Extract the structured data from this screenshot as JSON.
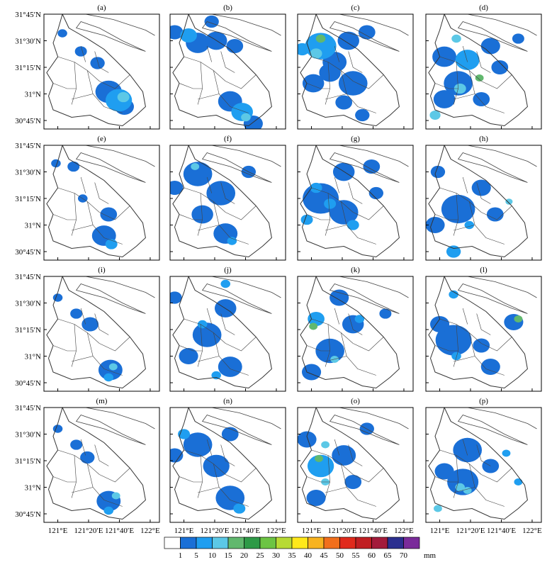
{
  "panels": [
    {
      "label": "(a)",
      "blobs": [
        {
          "x": 121.71,
          "y": 30.97,
          "mm": 45,
          "s": 0.05
        },
        {
          "x": 121.66,
          "y": 30.94,
          "mm": 25,
          "s": 0.11
        },
        {
          "x": 121.55,
          "y": 31.02,
          "mm": 15,
          "s": 0.11
        },
        {
          "x": 121.72,
          "y": 30.88,
          "mm": 15,
          "s": 0.08
        },
        {
          "x": 121.43,
          "y": 31.29,
          "mm": 12,
          "s": 0.06
        },
        {
          "x": 121.25,
          "y": 31.4,
          "mm": 8,
          "s": 0.05
        },
        {
          "x": 121.05,
          "y": 31.57,
          "mm": 6,
          "s": 0.04
        }
      ]
    },
    {
      "label": "(b)",
      "blobs": [
        {
          "x": 121.67,
          "y": 30.78,
          "mm": 45,
          "s": 0.04
        },
        {
          "x": 121.63,
          "y": 30.83,
          "mm": 25,
          "s": 0.09
        },
        {
          "x": 121.5,
          "y": 30.93,
          "mm": 15,
          "s": 0.1
        },
        {
          "x": 121.75,
          "y": 30.72,
          "mm": 12,
          "s": 0.08
        },
        {
          "x": 121.05,
          "y": 31.55,
          "mm": 20,
          "s": 0.07
        },
        {
          "x": 121.15,
          "y": 31.48,
          "mm": 10,
          "s": 0.1
        },
        {
          "x": 121.35,
          "y": 31.5,
          "mm": 10,
          "s": 0.09
        },
        {
          "x": 121.55,
          "y": 31.45,
          "mm": 8,
          "s": 0.07
        },
        {
          "x": 120.9,
          "y": 31.58,
          "mm": 8,
          "s": 0.07
        },
        {
          "x": 121.3,
          "y": 31.68,
          "mm": 6,
          "s": 0.06
        }
      ]
    },
    {
      "label": "(c)",
      "blobs": [
        {
          "x": 121.1,
          "y": 31.52,
          "mm": 65,
          "s": 0.04
        },
        {
          "x": 121.05,
          "y": 31.38,
          "mm": 55,
          "s": 0.05
        },
        {
          "x": 121.1,
          "y": 31.45,
          "mm": 25,
          "s": 0.13
        },
        {
          "x": 120.9,
          "y": 31.42,
          "mm": 25,
          "s": 0.06
        },
        {
          "x": 121.25,
          "y": 31.3,
          "mm": 15,
          "s": 0.1
        },
        {
          "x": 121.2,
          "y": 31.2,
          "mm": 15,
          "s": 0.09
        },
        {
          "x": 121.45,
          "y": 31.1,
          "mm": 10,
          "s": 0.12
        },
        {
          "x": 121.02,
          "y": 31.1,
          "mm": 10,
          "s": 0.09
        },
        {
          "x": 121.4,
          "y": 31.5,
          "mm": 8,
          "s": 0.09
        },
        {
          "x": 121.6,
          "y": 31.58,
          "mm": 6,
          "s": 0.07
        },
        {
          "x": 121.55,
          "y": 30.8,
          "mm": 6,
          "s": 0.06
        },
        {
          "x": 121.35,
          "y": 30.92,
          "mm": 8,
          "s": 0.07
        }
      ]
    },
    {
      "label": "(d)",
      "blobs": [
        {
          "x": 121.43,
          "y": 31.15,
          "mm": 70,
          "s": 0.035
        },
        {
          "x": 121.18,
          "y": 31.52,
          "mm": 55,
          "s": 0.04
        },
        {
          "x": 121.22,
          "y": 31.05,
          "mm": 45,
          "s": 0.05
        },
        {
          "x": 120.95,
          "y": 30.8,
          "mm": 45,
          "s": 0.045
        },
        {
          "x": 121.3,
          "y": 31.32,
          "mm": 20,
          "s": 0.1
        },
        {
          "x": 121.05,
          "y": 31.35,
          "mm": 12,
          "s": 0.1
        },
        {
          "x": 121.2,
          "y": 31.1,
          "mm": 15,
          "s": 0.12
        },
        {
          "x": 121.05,
          "y": 30.95,
          "mm": 12,
          "s": 0.09
        },
        {
          "x": 121.55,
          "y": 31.45,
          "mm": 10,
          "s": 0.08
        },
        {
          "x": 121.85,
          "y": 31.52,
          "mm": 15,
          "s": 0.05
        },
        {
          "x": 121.45,
          "y": 30.95,
          "mm": 8,
          "s": 0.07
        },
        {
          "x": 121.65,
          "y": 31.25,
          "mm": 6,
          "s": 0.07
        }
      ]
    },
    {
      "label": "(e)",
      "blobs": [
        {
          "x": 121.58,
          "y": 30.82,
          "mm": 25,
          "s": 0.05
        },
        {
          "x": 121.5,
          "y": 30.9,
          "mm": 12,
          "s": 0.1
        },
        {
          "x": 121.55,
          "y": 31.1,
          "mm": 10,
          "s": 0.07
        },
        {
          "x": 121.27,
          "y": 31.25,
          "mm": 8,
          "s": 0.04
        },
        {
          "x": 121.17,
          "y": 31.55,
          "mm": 8,
          "s": 0.05
        },
        {
          "x": 120.98,
          "y": 31.58,
          "mm": 6,
          "s": 0.04
        }
      ]
    },
    {
      "label": "(f)",
      "blobs": [
        {
          "x": 121.12,
          "y": 31.55,
          "mm": 40,
          "s": 0.035
        },
        {
          "x": 121.15,
          "y": 31.48,
          "mm": 12,
          "s": 0.12
        },
        {
          "x": 121.4,
          "y": 31.3,
          "mm": 10,
          "s": 0.12
        },
        {
          "x": 121.2,
          "y": 31.1,
          "mm": 10,
          "s": 0.09
        },
        {
          "x": 121.52,
          "y": 30.85,
          "mm": 35,
          "s": 0.04
        },
        {
          "x": 121.45,
          "y": 30.92,
          "mm": 12,
          "s": 0.1
        },
        {
          "x": 120.9,
          "y": 31.35,
          "mm": 8,
          "s": 0.07
        },
        {
          "x": 121.7,
          "y": 31.5,
          "mm": 8,
          "s": 0.06
        }
      ]
    },
    {
      "label": "(g)",
      "blobs": [
        {
          "x": 121.05,
          "y": 31.35,
          "mm": 25,
          "s": 0.05
        },
        {
          "x": 121.2,
          "y": 31.2,
          "mm": 25,
          "s": 0.05
        },
        {
          "x": 121.45,
          "y": 31.0,
          "mm": 25,
          "s": 0.05
        },
        {
          "x": 120.95,
          "y": 31.05,
          "mm": 20,
          "s": 0.05
        },
        {
          "x": 121.1,
          "y": 31.25,
          "mm": 12,
          "s": 0.15
        },
        {
          "x": 121.35,
          "y": 31.12,
          "mm": 10,
          "s": 0.12
        },
        {
          "x": 121.35,
          "y": 31.5,
          "mm": 10,
          "s": 0.09
        },
        {
          "x": 121.65,
          "y": 31.55,
          "mm": 6,
          "s": 0.07
        },
        {
          "x": 121.7,
          "y": 31.3,
          "mm": 6,
          "s": 0.06
        }
      ]
    },
    {
      "label": "(h)",
      "blobs": [
        {
          "x": 121.32,
          "y": 31.0,
          "mm": 30,
          "s": 0.04
        },
        {
          "x": 121.75,
          "y": 31.22,
          "mm": 40,
          "s": 0.03
        },
        {
          "x": 121.2,
          "y": 31.15,
          "mm": 12,
          "s": 0.14
        },
        {
          "x": 121.15,
          "y": 30.75,
          "mm": 20,
          "s": 0.06
        },
        {
          "x": 120.98,
          "y": 31.5,
          "mm": 12,
          "s": 0.06
        },
        {
          "x": 121.45,
          "y": 31.35,
          "mm": 10,
          "s": 0.08
        },
        {
          "x": 121.6,
          "y": 31.1,
          "mm": 8,
          "s": 0.07
        },
        {
          "x": 120.95,
          "y": 31.0,
          "mm": 10,
          "s": 0.08
        }
      ]
    },
    {
      "label": "(i)",
      "blobs": [
        {
          "x": 121.6,
          "y": 30.9,
          "mm": 50,
          "s": 0.035
        },
        {
          "x": 121.55,
          "y": 30.8,
          "mm": 35,
          "s": 0.04
        },
        {
          "x": 121.57,
          "y": 30.87,
          "mm": 15,
          "s": 0.1
        },
        {
          "x": 121.35,
          "y": 31.3,
          "mm": 10,
          "s": 0.07
        },
        {
          "x": 121.2,
          "y": 31.4,
          "mm": 8,
          "s": 0.05
        },
        {
          "x": 121.0,
          "y": 31.55,
          "mm": 6,
          "s": 0.04
        }
      ]
    },
    {
      "label": "(j)",
      "blobs": [
        {
          "x": 121.35,
          "y": 30.82,
          "mm": 30,
          "s": 0.04
        },
        {
          "x": 121.2,
          "y": 31.3,
          "mm": 25,
          "s": 0.04
        },
        {
          "x": 121.25,
          "y": 31.2,
          "mm": 12,
          "s": 0.12
        },
        {
          "x": 121.45,
          "y": 31.45,
          "mm": 10,
          "s": 0.09
        },
        {
          "x": 121.5,
          "y": 30.9,
          "mm": 10,
          "s": 0.1
        },
        {
          "x": 121.05,
          "y": 31.0,
          "mm": 8,
          "s": 0.08
        },
        {
          "x": 121.45,
          "y": 31.68,
          "mm": 25,
          "s": 0.04
        },
        {
          "x": 120.9,
          "y": 31.55,
          "mm": 8,
          "s": 0.06
        }
      ]
    },
    {
      "label": "(k)",
      "blobs": [
        {
          "x": 121.02,
          "y": 31.28,
          "mm": 70,
          "s": 0.035
        },
        {
          "x": 121.05,
          "y": 31.35,
          "mm": 35,
          "s": 0.07
        },
        {
          "x": 121.25,
          "y": 30.97,
          "mm": 45,
          "s": 0.035
        },
        {
          "x": 121.2,
          "y": 31.05,
          "mm": 15,
          "s": 0.12
        },
        {
          "x": 121.52,
          "y": 31.35,
          "mm": 30,
          "s": 0.04
        },
        {
          "x": 121.45,
          "y": 31.3,
          "mm": 10,
          "s": 0.09
        },
        {
          "x": 121.3,
          "y": 31.55,
          "mm": 12,
          "s": 0.08
        },
        {
          "x": 121.0,
          "y": 30.85,
          "mm": 10,
          "s": 0.08
        },
        {
          "x": 121.8,
          "y": 31.4,
          "mm": 8,
          "s": 0.05
        }
      ]
    },
    {
      "label": "(l)",
      "blobs": [
        {
          "x": 121.85,
          "y": 31.35,
          "mm": 65,
          "s": 0.035
        },
        {
          "x": 121.8,
          "y": 31.32,
          "mm": 15,
          "s": 0.08
        },
        {
          "x": 121.18,
          "y": 31.0,
          "mm": 35,
          "s": 0.04
        },
        {
          "x": 121.15,
          "y": 31.58,
          "mm": 25,
          "s": 0.04
        },
        {
          "x": 121.15,
          "y": 31.15,
          "mm": 12,
          "s": 0.15
        },
        {
          "x": 121.45,
          "y": 31.1,
          "mm": 15,
          "s": 0.07
        },
        {
          "x": 121.0,
          "y": 31.3,
          "mm": 12,
          "s": 0.08
        },
        {
          "x": 121.55,
          "y": 30.9,
          "mm": 8,
          "s": 0.08
        }
      ]
    },
    {
      "label": "(m)",
      "blobs": [
        {
          "x": 121.63,
          "y": 30.92,
          "mm": 45,
          "s": 0.035
        },
        {
          "x": 121.55,
          "y": 30.78,
          "mm": 25,
          "s": 0.04
        },
        {
          "x": 121.55,
          "y": 30.87,
          "mm": 15,
          "s": 0.1
        },
        {
          "x": 121.32,
          "y": 31.28,
          "mm": 12,
          "s": 0.06
        },
        {
          "x": 121.2,
          "y": 31.4,
          "mm": 8,
          "s": 0.05
        },
        {
          "x": 121.0,
          "y": 31.55,
          "mm": 6,
          "s": 0.04
        }
      ]
    },
    {
      "label": "(n)",
      "blobs": [
        {
          "x": 121.6,
          "y": 30.8,
          "mm": 25,
          "s": 0.05
        },
        {
          "x": 121.5,
          "y": 30.9,
          "mm": 12,
          "s": 0.12
        },
        {
          "x": 121.0,
          "y": 31.5,
          "mm": 20,
          "s": 0.05
        },
        {
          "x": 121.15,
          "y": 31.4,
          "mm": 10,
          "s": 0.12
        },
        {
          "x": 121.35,
          "y": 31.2,
          "mm": 10,
          "s": 0.11
        },
        {
          "x": 120.9,
          "y": 31.3,
          "mm": 8,
          "s": 0.07
        },
        {
          "x": 121.5,
          "y": 31.5,
          "mm": 8,
          "s": 0.07
        }
      ]
    },
    {
      "label": "(o)",
      "blobs": [
        {
          "x": 121.08,
          "y": 31.27,
          "mm": 60,
          "s": 0.035
        },
        {
          "x": 121.15,
          "y": 31.4,
          "mm": 50,
          "s": 0.035
        },
        {
          "x": 121.15,
          "y": 31.05,
          "mm": 50,
          "s": 0.035
        },
        {
          "x": 121.1,
          "y": 31.2,
          "mm": 20,
          "s": 0.11
        },
        {
          "x": 120.95,
          "y": 31.45,
          "mm": 15,
          "s": 0.08
        },
        {
          "x": 121.35,
          "y": 31.3,
          "mm": 10,
          "s": 0.1
        },
        {
          "x": 121.05,
          "y": 30.9,
          "mm": 10,
          "s": 0.08
        },
        {
          "x": 121.6,
          "y": 31.55,
          "mm": 8,
          "s": 0.06
        },
        {
          "x": 121.45,
          "y": 31.05,
          "mm": 6,
          "s": 0.07
        }
      ]
    },
    {
      "label": "(p)",
      "blobs": [
        {
          "x": 121.3,
          "y": 30.97,
          "mm": 55,
          "s": 0.035
        },
        {
          "x": 121.22,
          "y": 31.0,
          "mm": 45,
          "s": 0.04
        },
        {
          "x": 120.98,
          "y": 30.8,
          "mm": 40,
          "s": 0.035
        },
        {
          "x": 121.25,
          "y": 31.05,
          "mm": 15,
          "s": 0.13
        },
        {
          "x": 121.72,
          "y": 31.32,
          "mm": 30,
          "s": 0.035
        },
        {
          "x": 121.85,
          "y": 31.05,
          "mm": 20,
          "s": 0.035
        },
        {
          "x": 121.3,
          "y": 31.35,
          "mm": 8,
          "s": 0.12
        },
        {
          "x": 121.05,
          "y": 31.15,
          "mm": 10,
          "s": 0.08
        },
        {
          "x": 121.55,
          "y": 31.2,
          "mm": 8,
          "s": 0.07
        }
      ]
    }
  ],
  "lat_labels": [
    "31°45′N",
    "31°30′N",
    "31°15′N",
    "31°N",
    "30°45′N"
  ],
  "lat_values": [
    31.75,
    31.5,
    31.25,
    31.0,
    30.75
  ],
  "lon_labels": [
    "121°E",
    "121°20′E",
    "121°40′E",
    "122°E"
  ],
  "lon_values": [
    121.0,
    121.333,
    121.667,
    122.0
  ],
  "map_extent": {
    "lon_min": 120.85,
    "lon_max": 122.1,
    "lat_min": 30.67,
    "lat_max": 31.75
  },
  "legend": {
    "unit": "mm",
    "levels": [
      1,
      5,
      10,
      15,
      20,
      25,
      30,
      35,
      40,
      45,
      50,
      55,
      60,
      65,
      70
    ],
    "colors": [
      "#ffffff",
      "#1a6fd6",
      "#1f9ef0",
      "#5cc8e6",
      "#61b86e",
      "#2e9a47",
      "#6cc443",
      "#b7da34",
      "#ffe81a",
      "#f8b320",
      "#f16f1c",
      "#e02a1c",
      "#c01e22",
      "#a31b3b",
      "#2b2f8f",
      "#7a2b9a"
    ]
  }
}
